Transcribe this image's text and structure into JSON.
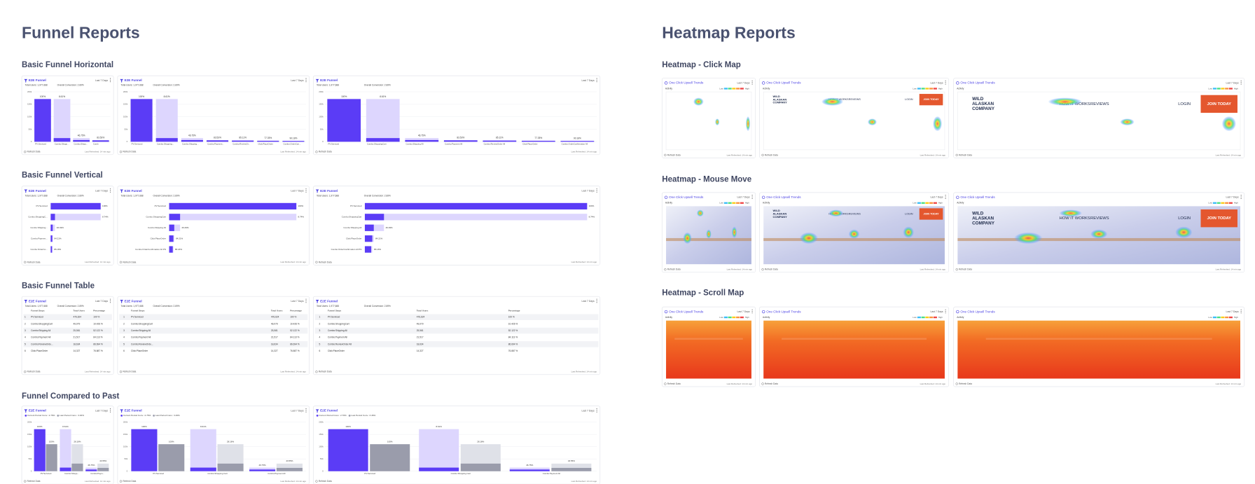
{
  "funnel_reports": {
    "title": "Funnel Reports",
    "colors": {
      "bar": "#5b3cf6",
      "drop": "#ddd6fe",
      "past": "#9a9cab",
      "past_drop": "#dfe1e8"
    },
    "card": {
      "title": "E2E Funnel",
      "range": "Last 7 Days",
      "stats": [
        "Total Users: 1,977,688",
        "Overall Conversion: 2.89%"
      ],
      "footer": [
        "Refresh Data",
        "Last Refreshed: 14 min ago"
      ]
    },
    "sections": [
      {
        "title": "Basic Funnel Horizontal",
        "kind": "horizontal",
        "charts": [
          {
            "ylim": [
              0,
              200000
            ],
            "yticks": [
              0,
              {
                "value": 50000,
                "label": "50k"
              },
              {
                "value": 100000,
                "label": "100k"
              },
              {
                "value": 150000,
                "label": "150k"
              },
              {
                "value": 200000,
                "label": "200k"
              }
            ],
            "steps": [
              {
                "name": "PV:Serviced",
                "value": 171200,
                "pct": "100%"
              },
              {
                "name": "Combo:Shopp...",
                "value": 14740,
                "pct": "8.61%"
              },
              {
                "name": "Combo:Shipp...",
                "value": 6891,
                "pct": "46.75%"
              },
              {
                "name": "Comb",
                "value": 5756,
                "pct": "83.53%"
              }
            ]
          },
          {
            "ylim": [
              0,
              200000
            ],
            "yticks": [
              0,
              {
                "value": 50000,
                "label": "50k"
              },
              {
                "value": 100000,
                "label": "100k"
              },
              {
                "value": 150000,
                "label": "150k"
              },
              {
                "value": 200000,
                "label": "200k"
              }
            ],
            "steps": [
              {
                "name": "PV:Serviced",
                "value": 171200,
                "pct": "100%"
              },
              {
                "name": "Combo:Shopping...",
                "value": 14740,
                "pct": "8.61%"
              },
              {
                "name": "Combo:Shipping...",
                "value": 6891,
                "pct": "46.75%"
              },
              {
                "name": "Combo:Payment...",
                "value": 5756,
                "pct": "83.53%"
              },
              {
                "name": "Combo:ReviewOr...",
                "value": 4899,
                "pct": "85.11%"
              },
              {
                "name": "Click:PlaceOrder",
                "value": 3789,
                "pct": "77.35%"
              },
              {
                "name": "Combo:OrderCon...",
                "value": 3417,
                "pct": "90.18%"
              }
            ]
          },
          {
            "ylim": [
              0,
              200000
            ],
            "yticks": [
              0,
              {
                "value": 50000,
                "label": "50k"
              },
              {
                "value": 100000,
                "label": "100k"
              },
              {
                "value": 150000,
                "label": "150k"
              },
              {
                "value": 200000,
                "label": "200k"
              }
            ],
            "steps": [
              {
                "name": "PV:Serviced",
                "value": 171200,
                "pct": "100%"
              },
              {
                "name": "Combo:ShoppingCart",
                "value": 14740,
                "pct": "8.61%"
              },
              {
                "name": "Combo:Shipping All",
                "value": 6891,
                "pct": "46.75%"
              },
              {
                "name": "Combo:Payment All",
                "value": 5756,
                "pct": "83.53%"
              },
              {
                "name": "Combo:ReviewOrder All",
                "value": 4899,
                "pct": "85.11%"
              },
              {
                "name": "Click:PlaceOrder",
                "value": 3789,
                "pct": "77.35%"
              },
              {
                "name": "Combo:OrderConfirmation All",
                "value": 3417,
                "pct": "90.18%"
              }
            ]
          }
        ]
      },
      {
        "title": "Basic Funnel Vertical",
        "kind": "vertical",
        "charts": [
          {
            "xlim": [
              0,
              171200
            ],
            "steps": [
              {
                "name": "PV:Serviced",
                "value": 171200,
                "pct": "100%"
              },
              {
                "name": "Combo:ShoppingC...",
                "value": 14740,
                "pct": "8.74%"
              },
              {
                "name": "Combo:Shipping...",
                "value": 6891,
                "pct": "46.49%"
              },
              {
                "name": "Combo:Paymen...",
                "value": 5756,
                "pct": "84.21%"
              },
              {
                "name": "Combo:OrderCo...",
                "value": 4899,
                "pct": "85.18%"
              }
            ]
          },
          {
            "xlim": [
              0,
              171200
            ],
            "steps": [
              {
                "name": "PV:Serviced",
                "value": 171200,
                "pct": "100%"
              },
              {
                "name": "Combo:ShoppingCart",
                "value": 14740,
                "pct": "8.74%"
              },
              {
                "name": "Combo:Shipping All",
                "value": 6891,
                "pct": "46.49%"
              },
              {
                "name": "Click:PlaceOrder",
                "value": 5756,
                "pct": "84.21%"
              },
              {
                "name": "Combo:OrderConfirmation All PN",
                "value": 4899,
                "pct": "85.18%"
              }
            ]
          },
          {
            "xlim": [
              0,
              171200
            ],
            "steps": [
              {
                "name": "PV:Serviced",
                "value": 171200,
                "pct": "100%"
              },
              {
                "name": "Combo:ShoppingCart",
                "value": 14740,
                "pct": "8.74%"
              },
              {
                "name": "Combo:Shipping All",
                "value": 6891,
                "pct": "46.49%"
              },
              {
                "name": "Click:PlaceOrder",
                "value": 5756,
                "pct": "84.21%"
              },
              {
                "name": "Combo:OrderConfirmation All PN",
                "value": 4899,
                "pct": "85.18%"
              }
            ]
          }
        ]
      },
      {
        "title": "Basic Funnel Table",
        "kind": "table",
        "charts": [
          {
            "columns": [
              "Funnel Steps",
              "Total Users",
              "Percentage"
            ],
            "rows": [
              [
                "1",
                "PV:Serviced",
                "476,624",
                "100 %"
              ],
              [
                "2",
                "Combo:ShoppingCart",
                "49,079",
                "10.426 %"
              ],
              [
                "3",
                "Combo:Shipping All",
                "25,581",
                "52.122 %"
              ],
              [
                "4",
                "Combo:Payment All",
                "21,517",
                "84.113 %"
              ],
              [
                "5",
                "Combo:ReviewOrde...",
                "18,634",
                "86.694 %"
              ],
              [
                "6",
                "Click:PlaceOrder",
                "14,327",
                "76.887 %"
              ]
            ]
          },
          {
            "columns": [
              "Funnel Steps",
              "Total Users",
              "Percentage"
            ],
            "rows": [
              [
                "1",
                "PV:Serviced",
                "476,624",
                "100 %"
              ],
              [
                "2",
                "Combo:ShoppingCart",
                "49,079",
                "10.426 %"
              ],
              [
                "3",
                "Combo:Shipping All",
                "25,581",
                "52.122 %"
              ],
              [
                "4",
                "Combo:Payment All",
                "21,517",
                "84.113 %"
              ],
              [
                "5",
                "Combo:ReviewOrde...",
                "18,634",
                "86.694 %"
              ],
              [
                "6",
                "Click:PlaceOrder",
                "14,327",
                "76.887 %"
              ]
            ]
          },
          {
            "columns": [
              "Funnel Steps",
              "Total Users",
              "Percentage"
            ],
            "rows": [
              [
                "1",
                "PV:Serviced",
                "476,624",
                "100 %"
              ],
              [
                "2",
                "Combo:ShoppingCart",
                "49,079",
                "10.426 %"
              ],
              [
                "3",
                "Combo:Shipping All",
                "25,581",
                "52.122 %"
              ],
              [
                "4",
                "Combo:Payment All",
                "21,517",
                "84.113 %"
              ],
              [
                "5",
                "Combo:ReviewOrder All",
                "18,634",
                "86.694 %"
              ],
              [
                "6",
                "Click:PlaceOrder",
                "14,327",
                "76.887 %"
              ]
            ]
          }
        ]
      },
      {
        "title": "Funnel Compared to Past",
        "kind": "compared",
        "charts": [
          {
            "ylim": [
              0,
              200000
            ],
            "yticks": [
              0,
              {
                "value": 50000,
                "label": "50k"
              },
              {
                "value": 100000,
                "label": "100k"
              },
              {
                "value": 150000,
                "label": "150k"
              },
              {
                "value": 200000,
                "label": "200k"
              }
            ],
            "steps": [
              "PV:Serviced",
              "Combo:Shopp...",
              "Combo:Paym..."
            ],
            "series": [
              {
                "name": "Current Period Conv.: 2.76%",
                "values": [
                  171200,
                  14740,
                  6891
                ],
                "labels": [
                  "100%",
                  "8.61%",
                  "46.75%"
                ]
              },
              {
                "name": "Last Period Conv.: 3.46%",
                "values": [
                  110000,
                  31000,
                  13500
                ],
                "labels": [
                  "100%",
                  "28.18%",
                  "43.55%"
                ]
              }
            ]
          },
          {
            "ylim": [
              0,
              200000
            ],
            "yticks": [
              0,
              {
                "value": 50000,
                "label": "50k"
              },
              {
                "value": 100000,
                "label": "100k"
              },
              {
                "value": 150000,
                "label": "150k"
              },
              {
                "value": 200000,
                "label": "200k"
              }
            ],
            "steps": [
              "PV:Serviced",
              "Combo:Shopping Cart",
              "Combo:Payment All"
            ],
            "series": [
              {
                "name": "Current Period Conv.: 2.76%",
                "values": [
                  171200,
                  14740,
                  6891
                ],
                "labels": [
                  "100%",
                  "8.61%",
                  "46.75%"
                ]
              },
              {
                "name": "Last Period Conv.: 3.46%",
                "values": [
                  110000,
                  31000,
                  13500
                ],
                "labels": [
                  "100%",
                  "28.18%",
                  "43.55%"
                ]
              }
            ]
          },
          {
            "ylim": [
              0,
              200000
            ],
            "yticks": [
              0,
              {
                "value": 50000,
                "label": "50k"
              },
              {
                "value": 100000,
                "label": "100k"
              },
              {
                "value": 150000,
                "label": "150k"
              },
              {
                "value": 200000,
                "label": "200k"
              }
            ],
            "steps": [
              "PV:Serviced",
              "Combo:Shopping Cart",
              "Combo:Payment All"
            ],
            "series": [
              {
                "name": "Current Period Conv.: 2.76%",
                "values": [
                  171200,
                  14740,
                  6891
                ],
                "labels": [
                  "100%",
                  "8.61%",
                  "46.75%"
                ]
              },
              {
                "name": "Last Period Conv.: 3.46%",
                "values": [
                  110000,
                  31000,
                  13500
                ],
                "labels": [
                  "100%",
                  "28.18%",
                  "43.55%"
                ]
              }
            ]
          }
        ]
      }
    ]
  },
  "heatmap_reports": {
    "title": "Heatmap Reports",
    "legend_colors": [
      "#38bdf8",
      "#4ade80",
      "#facc15",
      "#fb923c",
      "#ef4444"
    ],
    "card": {
      "title": "One Click Upsell Trends",
      "range": "Last 7 Days",
      "label": "Activity",
      "low": "Low",
      "high": "High",
      "footer": [
        "Refresh Data",
        "Last Refreshed: 14 min ago"
      ]
    },
    "page": {
      "logo": [
        "WILD",
        "ALASKAN",
        "COMPANY"
      ],
      "nav": [
        "HOW IT WORKS",
        "REVIEWS",
        "LOGIN"
      ],
      "cta": "JOIN TODAY"
    },
    "sections": [
      {
        "title": "Heatmap - Click Map",
        "kind": "click"
      },
      {
        "title": "Heatmap - Mouse Move",
        "kind": "move"
      },
      {
        "title": "Heatmap - Scroll Map",
        "kind": "scroll"
      }
    ]
  }
}
